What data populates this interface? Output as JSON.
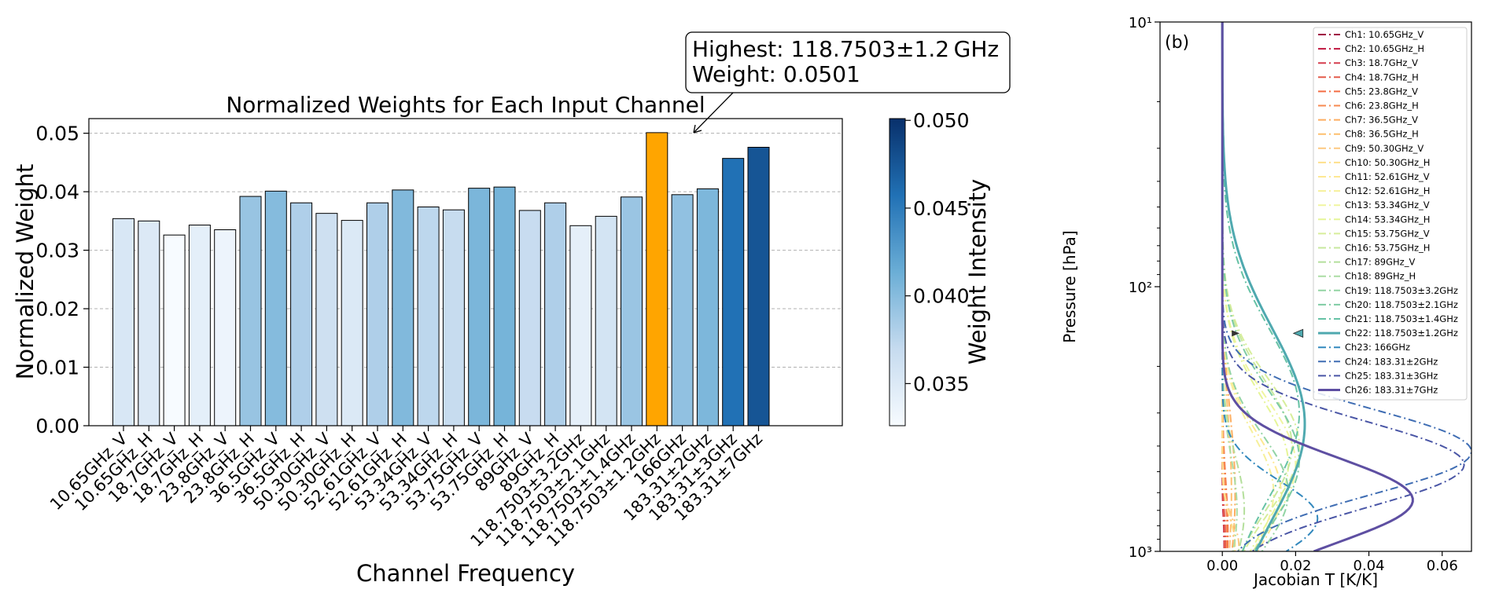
{
  "chart_data": [
    {
      "type": "bar",
      "title": "Normalized Weights for Each Input Channel",
      "xlabel": "Channel Frequency",
      "ylabel": "Normalized Weight",
      "ylim": [
        0,
        0.0525
      ],
      "yticks": [
        "0.00",
        "0.01",
        "0.02",
        "0.03",
        "0.04",
        "0.05"
      ],
      "grid": "y-dashed",
      "categories": [
        "10.65GHz_V",
        "10.65GHz_H",
        "18.7GHz_V",
        "18.7GHz_H",
        "23.8GHz_V",
        "23.8GHz_H",
        "36.5GHz_V",
        "36.5GHz_H",
        "50.30GHz_V",
        "50.30GHz_H",
        "52.61GHz_V",
        "52.61GHz_H",
        "53.34GHz_V",
        "53.34GHz_H",
        "53.75GHz_V",
        "53.75GHz_H",
        "89GHz_V",
        "89GHz_H",
        "118.7503±3.2GHz",
        "118.7503±2.1GHz",
        "118.7503±1.4GHz",
        "118.7503±1.2GHz",
        "166GHz",
        "183.31±2GHz",
        "183.31±3GHz",
        "183.31±7GHz"
      ],
      "values": [
        0.0354,
        0.035,
        0.0326,
        0.0343,
        0.0335,
        0.0392,
        0.0401,
        0.0381,
        0.0363,
        0.0351,
        0.0381,
        0.0403,
        0.0374,
        0.0369,
        0.0406,
        0.0408,
        0.0368,
        0.0381,
        0.0342,
        0.0358,
        0.0391,
        0.0501,
        0.0395,
        0.0405,
        0.0457,
        0.0476
      ],
      "highlight_index": 21,
      "highlight_color": "#ffa500",
      "annotation": {
        "line1": "Highest: 118.7503±1.2 GHz",
        "line2": "Weight: 0.0501"
      },
      "colorbar": {
        "label": "Weight Intensity",
        "range": [
          0.0326,
          0.0501
        ],
        "ticks": [
          0.035,
          0.04,
          0.045,
          0.05
        ],
        "tick_labels": [
          "0.035",
          "0.040",
          "0.045",
          "0.050"
        ],
        "colormap": "Blues"
      }
    },
    {
      "type": "line",
      "panel_label": "(b)",
      "xlabel": "Jacobian T [K/K]",
      "ylabel": "Pressure [hPa]",
      "xlim": [
        -0.017,
        0.068
      ],
      "xticks": [
        "0.00",
        "0.02",
        "0.04",
        "0.06"
      ],
      "yscale": "log",
      "ylim": [
        1000,
        10
      ],
      "ytick_labels": [
        "10¹",
        "10²",
        "10³"
      ],
      "legend_location": "upper-right",
      "series": [
        {
          "name": "Ch1: 10.65GHz_V",
          "color": "#9e0142",
          "style": "dashdot",
          "peak_x": 0.0006,
          "peak_p": 950,
          "width": 0.1
        },
        {
          "name": "Ch2: 10.65GHz_H",
          "color": "#c0163f",
          "style": "dashdot",
          "peak_x": 0.0005,
          "peak_p": 950,
          "width": 0.1
        },
        {
          "name": "Ch3: 18.7GHz_V",
          "color": "#d53e4f",
          "style": "dashdot",
          "peak_x": 0.0008,
          "peak_p": 920,
          "width": 0.12
        },
        {
          "name": "Ch4: 18.7GHz_H",
          "color": "#e45b4b",
          "style": "dashdot",
          "peak_x": 0.0006,
          "peak_p": 920,
          "width": 0.12
        },
        {
          "name": "Ch5: 23.8GHz_V",
          "color": "#f46d43",
          "style": "dashdot",
          "peak_x": 0.0015,
          "peak_p": 850,
          "width": 0.2
        },
        {
          "name": "Ch6: 23.8GHz_H",
          "color": "#f78a51",
          "style": "dashdot",
          "peak_x": 0.0012,
          "peak_p": 850,
          "width": 0.2
        },
        {
          "name": "Ch7: 36.5GHz_V",
          "color": "#fdae61",
          "style": "dashdot",
          "peak_x": 0.0035,
          "peak_p": 600,
          "width": 0.3
        },
        {
          "name": "Ch8: 36.5GHz_H",
          "color": "#fdbf6f",
          "style": "dashdot",
          "peak_x": 0.0025,
          "peak_p": 600,
          "width": 0.3
        },
        {
          "name": "Ch9: 50.30GHz_V",
          "color": "#fdc981",
          "style": "dashdot",
          "peak_x": 0.0045,
          "peak_p": 950,
          "width": 0.1
        },
        {
          "name": "Ch10: 50.30GHz_H",
          "color": "#fee08b",
          "style": "dashdot",
          "peak_x": 0.0035,
          "peak_p": 950,
          "width": 0.1
        },
        {
          "name": "Ch11: 52.61GHz_V",
          "color": "#fee893",
          "style": "dashdot",
          "peak_x": 0.016,
          "peak_p": 600,
          "width": 0.22
        },
        {
          "name": "Ch12: 52.61GHz_H",
          "color": "#f6f09b",
          "style": "dashdot",
          "peak_x": 0.014,
          "peak_p": 600,
          "width": 0.22
        },
        {
          "name": "Ch13: 53.34GHz_V",
          "color": "#f0f5a0",
          "style": "dashdot",
          "peak_x": 0.02,
          "peak_p": 470,
          "width": 0.25
        },
        {
          "name": "Ch14: 53.34GHz_H",
          "color": "#e6f598",
          "style": "dashdot",
          "peak_x": 0.018,
          "peak_p": 470,
          "width": 0.25
        },
        {
          "name": "Ch15: 53.75GHz_V",
          "color": "#d7ee9b",
          "style": "dashdot",
          "peak_x": 0.021,
          "peak_p": 400,
          "width": 0.25
        },
        {
          "name": "Ch16: 53.75GHz_H",
          "color": "#c7e89e",
          "style": "dashdot",
          "peak_x": 0.019,
          "peak_p": 400,
          "width": 0.25
        },
        {
          "name": "Ch17: 89GHz_V",
          "color": "#b4df9c",
          "style": "dashdot",
          "peak_x": 0.006,
          "peak_p": 700,
          "width": 0.2
        },
        {
          "name": "Ch18: 89GHz_H",
          "color": "#abdda4",
          "style": "dashdot",
          "peak_x": 0.004,
          "peak_p": 700,
          "width": 0.2
        },
        {
          "name": "Ch19: 118.7503±3.2GHz",
          "color": "#93d4a4",
          "style": "dashdot",
          "peak_x": 0.018,
          "peak_p": 600,
          "width": 0.22
        },
        {
          "name": "Ch20: 118.7503±2.1GHz",
          "color": "#7ecba3",
          "style": "dashdot",
          "peak_x": 0.021,
          "peak_p": 450,
          "width": 0.26
        },
        {
          "name": "Ch21: 118.7503±1.4GHz",
          "color": "#66c2a5",
          "style": "dashdot",
          "peak_x": 0.021,
          "peak_p": 300,
          "width": 0.32
        },
        {
          "name": "Ch22: 118.7503±1.2GHz",
          "color": "#4fa9af",
          "style": "solid",
          "peak_x": 0.0225,
          "peak_p": 330,
          "width": 0.36
        },
        {
          "name": "Ch23: 166GHz",
          "color": "#3288bd",
          "style": "dashdot",
          "peak_x": 0.026,
          "peak_p": 750,
          "width": 0.14
        },
        {
          "name": "Ch24: 183.31±2GHz",
          "color": "#3f6db3",
          "style": "dashdot",
          "peak_x": 0.068,
          "peak_p": 420,
          "width": 0.16
        },
        {
          "name": "Ch25: 183.31±3GHz",
          "color": "#4a56a6",
          "style": "dashdot",
          "peak_x": 0.066,
          "peak_p": 470,
          "width": 0.16
        },
        {
          "name": "Ch26: 183.31±7GHz",
          "color": "#5e4fa2",
          "style": "solid",
          "peak_x": 0.052,
          "peak_p": 640,
          "width": 0.16
        }
      ]
    }
  ]
}
